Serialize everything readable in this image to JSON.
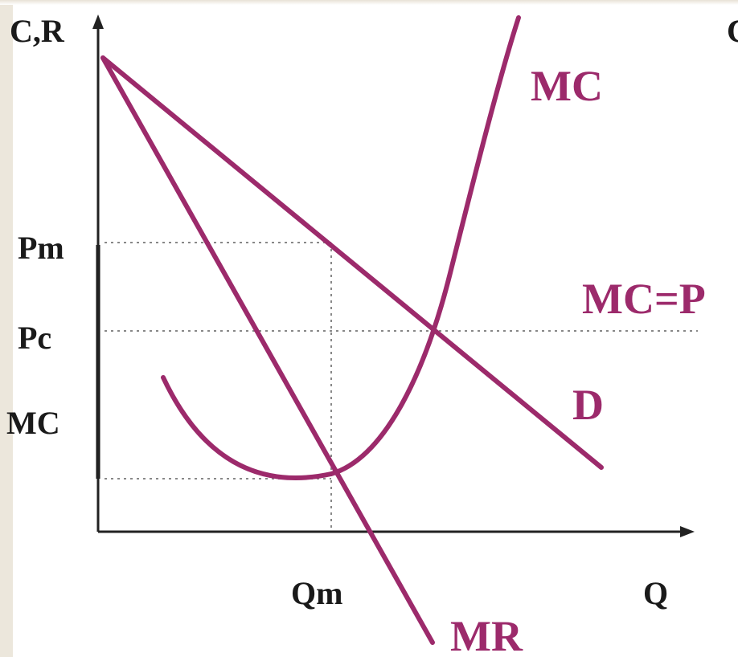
{
  "diagram": {
    "y_axis_label": "C,R",
    "x_axis_label": "Q",
    "cut_off_label": "C",
    "y_ticks": {
      "price_monopoly": "Ρm",
      "price_competitive": "Ρc",
      "marginal_cost": "MC"
    },
    "x_ticks": {
      "quantity_monopoly": "Qm"
    },
    "curves": {
      "mc": "MC",
      "mc_equals_p": "MC=Ρ",
      "demand": "D",
      "marginal_revenue": "MR"
    }
  },
  "colors": {
    "curve": "#9c2a6b",
    "axis": "#222222",
    "guide": "#888888",
    "background": "#ffffff",
    "side_band": "#ece7dc"
  }
}
